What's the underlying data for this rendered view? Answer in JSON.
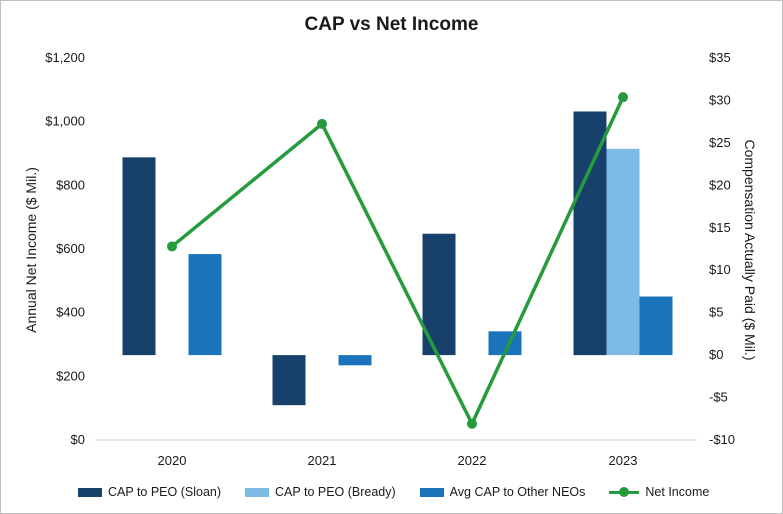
{
  "chart_data": {
    "type": "bar+line",
    "title": "CAP vs Net Income",
    "categories": [
      "2020",
      "2021",
      "2022",
      "2023"
    ],
    "y_left": {
      "label": "Annual Net Income ($ Mil.)",
      "lim": [
        0,
        1200
      ],
      "ticks": [
        0,
        200,
        400,
        600,
        800,
        1000,
        1200
      ],
      "tick_labels": [
        "$0",
        "$200",
        "$400",
        "$600",
        "$800",
        "$1,000",
        "$1,200"
      ]
    },
    "y_right": {
      "label": "Compensation Actually Paid ($ Mil.)",
      "lim": [
        -10,
        35
      ],
      "ticks": [
        -10,
        -5,
        0,
        5,
        10,
        15,
        20,
        25,
        30,
        35
      ],
      "tick_labels": [
        "-$10",
        "-$5",
        "$0",
        "$5",
        "$10",
        "$15",
        "$20",
        "$25",
        "$30",
        "$35"
      ]
    },
    "series": [
      {
        "name": "CAP to PEO (Sloan)",
        "type": "bar",
        "axis": "right",
        "color": "#17416b",
        "values": [
          23.3,
          -5.9,
          14.3,
          28.7
        ]
      },
      {
        "name": "CAP to PEO (Bready)",
        "type": "bar",
        "axis": "right",
        "color": "#7dbbe6",
        "values": [
          null,
          null,
          null,
          24.3
        ]
      },
      {
        "name": "Avg CAP to Other NEOs",
        "type": "bar",
        "axis": "right",
        "color": "#1a73bb",
        "values": [
          11.9,
          -1.2,
          2.8,
          6.9
        ]
      },
      {
        "name": "Net Income",
        "type": "line",
        "axis": "left",
        "color": "#259b3e",
        "values": [
          608,
          993,
          51,
          1077
        ]
      }
    ],
    "grid": false,
    "legend_position": "bottom"
  }
}
